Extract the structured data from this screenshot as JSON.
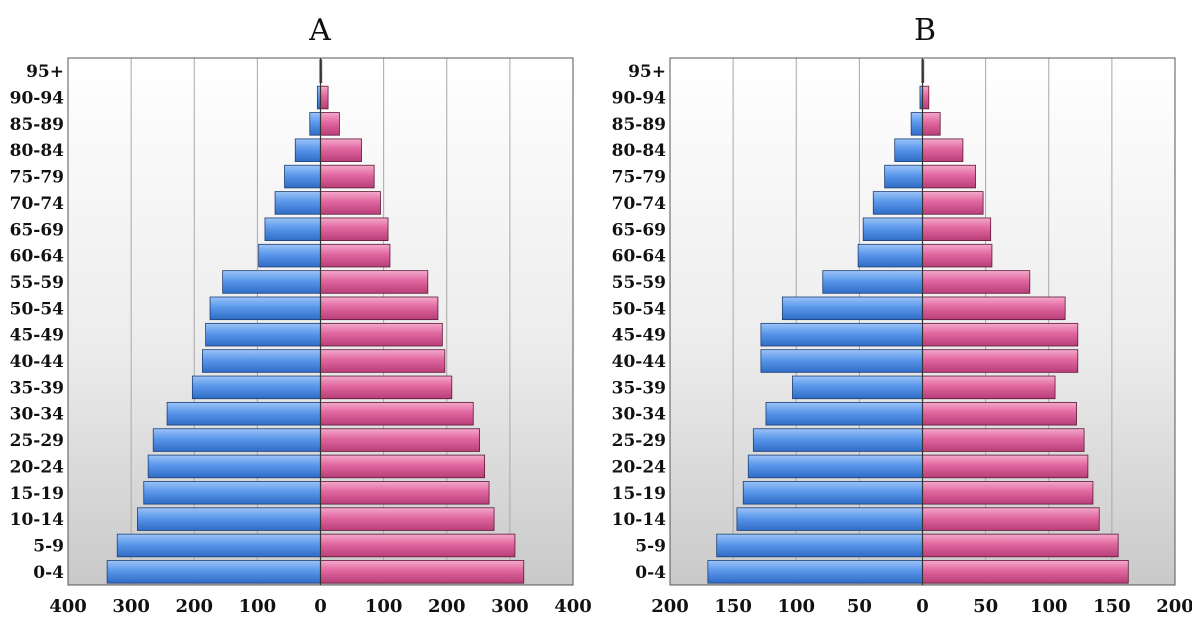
{
  "chart_data": [
    {
      "type": "bar",
      "title": "A",
      "categories": [
        "0-4",
        "5-9",
        "10-14",
        "15-19",
        "20-24",
        "25-29",
        "30-34",
        "35-39",
        "40-44",
        "45-49",
        "50-54",
        "55-59",
        "60-64",
        "65-69",
        "70-74",
        "75-79",
        "80-84",
        "85-89",
        "90-94",
        "95+"
      ],
      "series": [
        {
          "values": [
            338,
            322,
            290,
            280,
            273,
            265,
            243,
            203,
            187,
            182,
            175,
            155,
            98,
            88,
            72,
            57,
            40,
            17,
            5,
            1
          ]
        },
        {
          "values": [
            322,
            308,
            275,
            267,
            260,
            252,
            242,
            208,
            197,
            193,
            186,
            170,
            110,
            107,
            95,
            85,
            65,
            30,
            12,
            2
          ]
        }
      ],
      "xlim": [
        -400,
        400
      ],
      "xticks": [
        "400",
        "300",
        "200",
        "100",
        "0",
        "100",
        "200",
        "300",
        "400"
      ],
      "colors": {
        "left": "#4f8fe6",
        "right": "#e0669f"
      }
    },
    {
      "type": "bar",
      "title": "B",
      "categories": [
        "0-4",
        "5-9",
        "10-14",
        "15-19",
        "20-24",
        "25-29",
        "30-34",
        "35-39",
        "40-44",
        "45-49",
        "50-54",
        "55-59",
        "60-64",
        "65-69",
        "70-74",
        "75-79",
        "80-84",
        "85-89",
        "90-94",
        "95+"
      ],
      "series": [
        {
          "values": [
            170,
            163,
            147,
            142,
            138,
            134,
            124,
            103,
            128,
            128,
            111,
            79,
            51,
            47,
            39,
            30,
            22,
            9,
            2,
            0.5
          ]
        },
        {
          "values": [
            163,
            155,
            140,
            135,
            131,
            128,
            122,
            105,
            123,
            123,
            113,
            85,
            55,
            54,
            48,
            42,
            32,
            14,
            5,
            1
          ]
        }
      ],
      "xlim": [
        -200,
        200
      ],
      "xticks": [
        "200",
        "150",
        "100",
        "50",
        "0",
        "50",
        "100",
        "150",
        "200"
      ],
      "colors": {
        "left": "#4f8fe6",
        "right": "#e0669f"
      }
    }
  ]
}
